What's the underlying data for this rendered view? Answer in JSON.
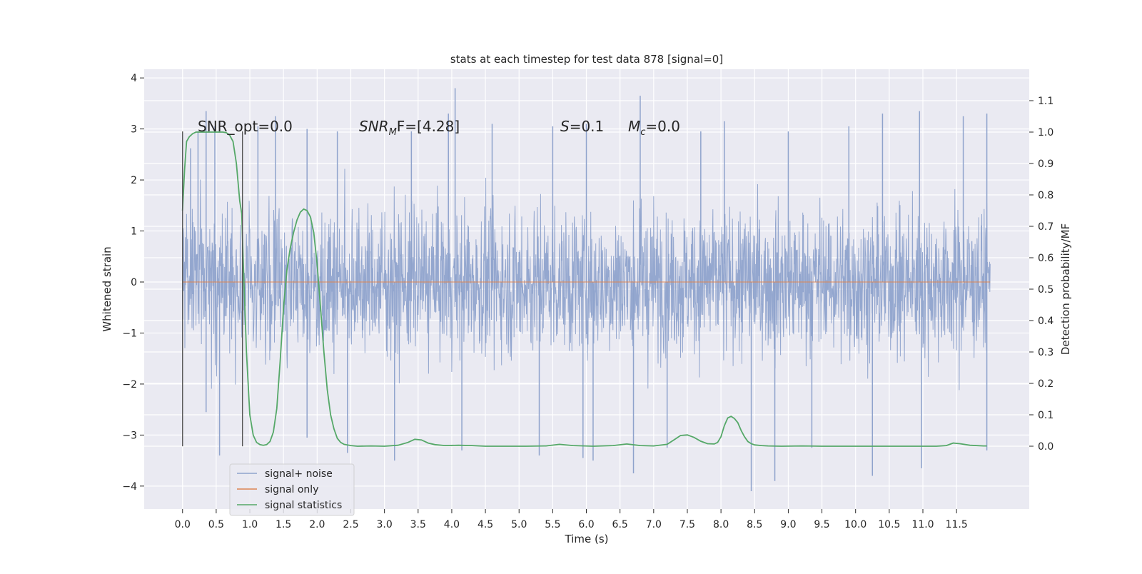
{
  "chart_data": {
    "type": "line",
    "title": "stats at each timestep for test data 878 [signal=0]",
    "xlabel": "Time (s)",
    "ylabel_left": "Whitened strain",
    "ylabel_right": "Detection probability/MF",
    "xlim": [
      -0.57,
      12.58
    ],
    "ylim_left": [
      -4.45,
      4.17
    ],
    "ylim_right": [
      -0.2,
      1.2
    ],
    "x_ticks": [
      "0.0",
      "0.5",
      "1.0",
      "1.5",
      "2.0",
      "2.5",
      "3.0",
      "3.5",
      "4.0",
      "4.5",
      "5.0",
      "5.5",
      "6.0",
      "6.5",
      "7.0",
      "7.5",
      "8.0",
      "8.5",
      "9.0",
      "9.5",
      "10.0",
      "10.5",
      "11.0",
      "11.5"
    ],
    "y_left_ticks": [
      "4",
      "3",
      "2",
      "1",
      "0",
      "−1",
      "−2",
      "−3",
      "−4"
    ],
    "y_right_ticks": [
      "1.1",
      "1.0",
      "0.9",
      "0.8",
      "0.7",
      "0.6",
      "0.5",
      "0.4",
      "0.3",
      "0.2",
      "0.1",
      "0.0"
    ],
    "grid": true,
    "legend_position": "lower-left",
    "annotations": {
      "snr_opt": "SNR_opt=0.0",
      "snr_mf_main": "SNR",
      "snr_mf_sub": "M",
      "snr_mf_rest": "F=[4.28]",
      "s_label": "S",
      "s_value": "=0.1",
      "mc_main": "M",
      "mc_sub": "c",
      "mc_value": "=0.0"
    },
    "vertical_markers_x": [
      0.0,
      0.89
    ],
    "vertical_markers_ylim": [
      -3.22,
      2.95
    ],
    "series": [
      {
        "name": "signal+ noise",
        "axis": "left",
        "color": "#8fa3cc",
        "x_range": [
          0.0,
          12.0
        ],
        "amplitude_peaks": [
          {
            "x": 0.12,
            "y": 2.62
          },
          {
            "x": 0.23,
            "y": 2.95
          },
          {
            "x": 0.35,
            "y": 3.35
          },
          {
            "x": 0.48,
            "y": 3.05
          },
          {
            "x": 1.12,
            "y": 3.05
          },
          {
            "x": 1.38,
            "y": 3.25
          },
          {
            "x": 1.85,
            "y": 3.0
          },
          {
            "x": 2.3,
            "y": 2.95
          },
          {
            "x": 3.4,
            "y": 2.95
          },
          {
            "x": 3.95,
            "y": 3.3
          },
          {
            "x": 4.05,
            "y": 3.8
          },
          {
            "x": 4.6,
            "y": 3.1
          },
          {
            "x": 5.5,
            "y": 3.05
          },
          {
            "x": 6.0,
            "y": 3.1
          },
          {
            "x": 6.8,
            "y": 3.65
          },
          {
            "x": 7.7,
            "y": 2.95
          },
          {
            "x": 8.05,
            "y": 3.15
          },
          {
            "x": 9.0,
            "y": 2.95
          },
          {
            "x": 9.9,
            "y": 3.05
          },
          {
            "x": 10.4,
            "y": 3.3
          },
          {
            "x": 10.95,
            "y": 3.35
          },
          {
            "x": 11.6,
            "y": 3.25
          },
          {
            "x": 11.95,
            "y": 3.3
          }
        ],
        "trough_peaks": [
          {
            "x": 0.35,
            "y": -2.55
          },
          {
            "x": 0.55,
            "y": -3.4
          },
          {
            "x": 1.85,
            "y": -3.05
          },
          {
            "x": 2.45,
            "y": -3.35
          },
          {
            "x": 3.15,
            "y": -3.5
          },
          {
            "x": 4.15,
            "y": -3.3
          },
          {
            "x": 5.3,
            "y": -3.4
          },
          {
            "x": 5.95,
            "y": -3.45
          },
          {
            "x": 6.1,
            "y": -3.5
          },
          {
            "x": 6.7,
            "y": -3.75
          },
          {
            "x": 7.2,
            "y": -3.25
          },
          {
            "x": 8.45,
            "y": -4.1
          },
          {
            "x": 8.8,
            "y": -3.9
          },
          {
            "x": 9.35,
            "y": -3.25
          },
          {
            "x": 10.25,
            "y": -3.8
          },
          {
            "x": 10.98,
            "y": -3.65
          },
          {
            "x": 11.95,
            "y": -3.3
          }
        ]
      },
      {
        "name": "signal only",
        "axis": "left",
        "color": "#dd8452",
        "x": [
          0.0,
          12.0
        ],
        "y": [
          0.0,
          0.0
        ]
      },
      {
        "name": "signal statistics",
        "axis": "right",
        "color": "#55a868",
        "x": [
          0.0,
          0.03,
          0.06,
          0.1,
          0.15,
          0.2,
          0.3,
          0.4,
          0.5,
          0.6,
          0.65,
          0.7,
          0.75,
          0.8,
          0.85,
          0.88,
          0.9,
          0.95,
          1.0,
          1.05,
          1.1,
          1.15,
          1.2,
          1.25,
          1.3,
          1.35,
          1.4,
          1.45,
          1.5,
          1.55,
          1.6,
          1.65,
          1.7,
          1.75,
          1.8,
          1.85,
          1.9,
          1.95,
          2.0,
          2.05,
          2.1,
          2.15,
          2.2,
          2.25,
          2.3,
          2.35,
          2.4,
          2.5,
          2.6,
          2.8,
          3.0,
          3.2,
          3.35,
          3.45,
          3.55,
          3.65,
          3.75,
          3.9,
          4.1,
          4.3,
          4.5,
          4.8,
          5.1,
          5.4,
          5.6,
          5.8,
          6.1,
          6.4,
          6.6,
          6.8,
          7.0,
          7.2,
          7.3,
          7.4,
          7.5,
          7.6,
          7.7,
          7.8,
          7.9,
          7.95,
          8.0,
          8.05,
          8.1,
          8.15,
          8.2,
          8.25,
          8.3,
          8.35,
          8.4,
          8.45,
          8.5,
          8.6,
          8.7,
          8.9,
          9.2,
          9.5,
          9.8,
          10.1,
          10.4,
          10.7,
          11.0,
          11.2,
          11.35,
          11.45,
          11.55,
          11.7,
          11.9,
          11.95
        ],
        "y": [
          0.75,
          0.88,
          0.97,
          0.985,
          0.995,
          1.0,
          1.0,
          1.0,
          1.0,
          1.0,
          0.998,
          0.99,
          0.97,
          0.9,
          0.78,
          0.74,
          0.6,
          0.3,
          0.1,
          0.035,
          0.012,
          0.005,
          0.003,
          0.005,
          0.015,
          0.045,
          0.12,
          0.27,
          0.44,
          0.56,
          0.63,
          0.68,
          0.72,
          0.745,
          0.755,
          0.75,
          0.73,
          0.68,
          0.58,
          0.44,
          0.3,
          0.18,
          0.1,
          0.055,
          0.025,
          0.012,
          0.006,
          0.002,
          0.0,
          0.001,
          0.0,
          0.003,
          0.012,
          0.022,
          0.02,
          0.01,
          0.005,
          0.002,
          0.003,
          0.002,
          0.0,
          0.0,
          0.0,
          0.001,
          0.006,
          0.002,
          0.0,
          0.002,
          0.007,
          0.002,
          0.001,
          0.006,
          0.02,
          0.034,
          0.036,
          0.028,
          0.016,
          0.008,
          0.007,
          0.012,
          0.03,
          0.065,
          0.09,
          0.095,
          0.088,
          0.075,
          0.05,
          0.03,
          0.015,
          0.008,
          0.004,
          0.002,
          0.001,
          0.0,
          0.001,
          0.0,
          0.0,
          0.0,
          0.0,
          0.0,
          0.0,
          0.0,
          0.002,
          0.01,
          0.008,
          0.003,
          0.001,
          0.001
        ]
      }
    ]
  }
}
